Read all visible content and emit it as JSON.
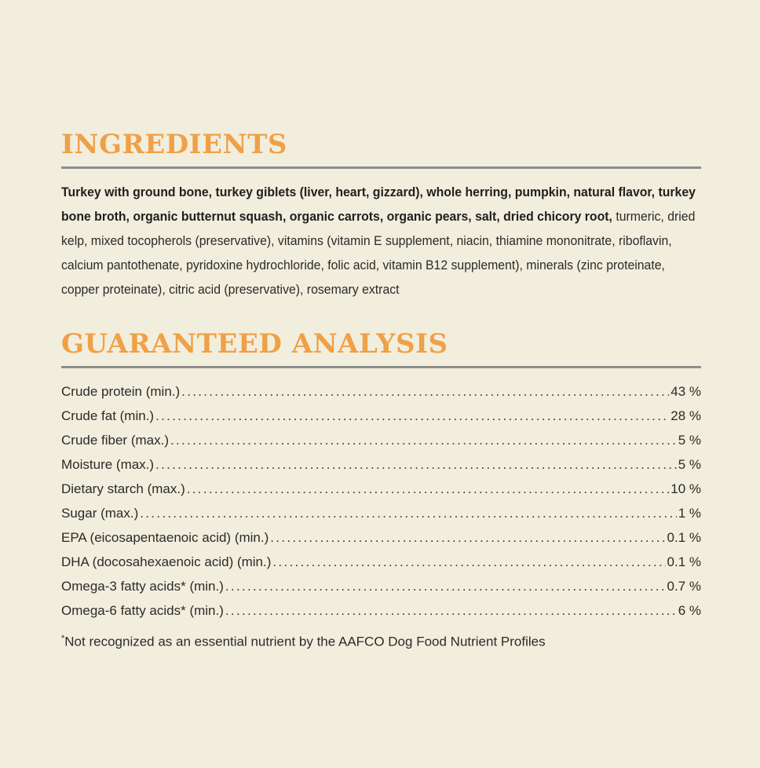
{
  "ingredients": {
    "heading": "INGREDIENTS",
    "bold_text": "Turkey with ground bone, turkey giblets (liver, heart, gizzard), whole herring, pumpkin, natural flavor, turkey bone broth, organic butternut squash, organic carrots, organic pears, salt, dried chicory root,",
    "regular_text": "turmeric, dried kelp, mixed tocopherols (preservative), vitamins (vitamin E supplement, niacin, thiamine mononitrate, riboflavin, calcium pantothenate, pyridoxine hydrochloride, folic acid, vitamin B12 supplement), minerals (zinc proteinate, copper proteinate), citric acid (preservative), rosemary extract"
  },
  "analysis": {
    "heading": "GUARANTEED ANALYSIS",
    "rows": [
      {
        "label": "Crude protein (min.)",
        "value": "43 %"
      },
      {
        "label": "Crude fat (min.)",
        "value": "28 %"
      },
      {
        "label": "Crude fiber (max.)",
        "value": "5 %"
      },
      {
        "label": "Moisture (max.)",
        "value": "5 %"
      },
      {
        "label": "Dietary starch (max.)",
        "value": "10 %"
      },
      {
        "label": "Sugar (max.)",
        "value": "1 %"
      },
      {
        "label": "EPA (eicosapentaenoic acid) (min.)",
        "value": "0.1 %"
      },
      {
        "label": "DHA (docosahexaenoic acid) (min.)",
        "value": "0.1 %"
      },
      {
        "label": "Omega-3 fatty acids* (min.)",
        "value": "0.7 %"
      },
      {
        "label": "Omega-6 fatty acids* (min.)",
        "value": "6 %"
      }
    ],
    "footnote_mark": "*",
    "footnote": "Not recognized as an essential nutrient by the AAFCO Dog Food Nutrient Profiles"
  },
  "colors": {
    "background": "#f2eedd",
    "heading": "#f0a046",
    "rule": "#8e8e8a",
    "text": "#2a2a2a"
  }
}
